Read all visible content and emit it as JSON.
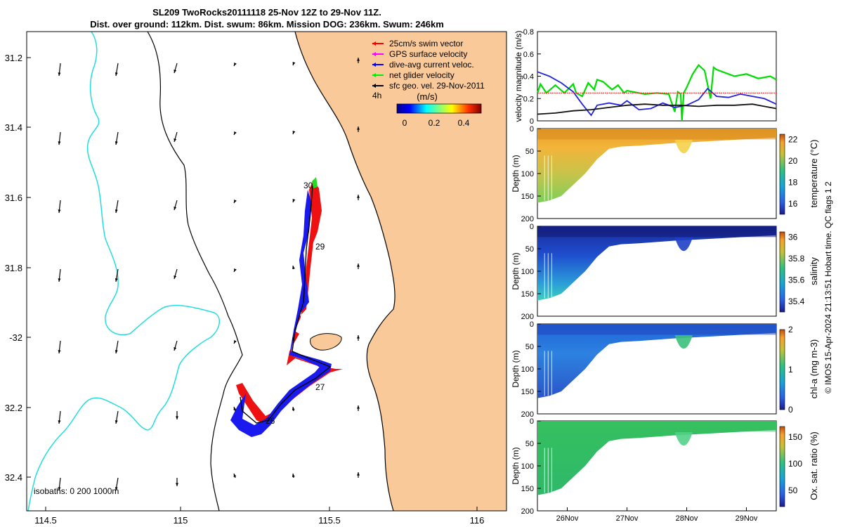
{
  "header": {
    "title_line1": "SL209 TwoRocks20111118 25-Nov 12Z to 29-Nov 11Z.",
    "title_line2": "Dist. over ground: 112km. Dist. swum: 86km. Mission DOG: 236km. Swum: 246km"
  },
  "map": {
    "lon_ticks": [
      "114.5",
      "115",
      "115.5",
      "116"
    ],
    "lat_ticks": [
      "31.2",
      "31.4",
      "31.6",
      "31.8",
      "-32",
      "32.2",
      "32.4"
    ],
    "legend": [
      {
        "label": "25cm/s swim vector",
        "color": "#ff0000"
      },
      {
        "label": "GPS surface velocity",
        "color": "#ff00ff"
      },
      {
        "label": "dive-avg current veloc.",
        "color": "#0000ff"
      },
      {
        "label": "net glider velocity",
        "color": "#00ee00"
      },
      {
        "label": "sfc geo. vel. 29-Nov-2011",
        "color": "#000000"
      }
    ],
    "time_tag": "4h",
    "colorbar": {
      "unit": "(m/s)",
      "ticks": [
        "0",
        "0.2",
        "0.4"
      ]
    },
    "day_labels": [
      "30",
      "29",
      "27",
      "26"
    ],
    "isobaths": "isobaths: 0   200 1000m",
    "colors": {
      "land": "#f9c99a",
      "coast": "#000000",
      "isobath_1000": "#22dddd"
    }
  },
  "chart_data": [
    {
      "type": "line",
      "ylabel": "velocity magnitude (m/s)",
      "ylim": [
        0,
        0.8
      ],
      "x_range_days": [
        25.5,
        29.5
      ],
      "y_ticks": [
        "0",
        "0.2",
        "0.4",
        "0.6",
        "0.8"
      ],
      "series": [
        {
          "name": "net glider velocity",
          "color": "#00dd00",
          "x": [
            25.5,
            25.55,
            25.65,
            25.8,
            25.95,
            26.1,
            26.15,
            26.25,
            26.35,
            26.45,
            26.5,
            26.6,
            26.75,
            26.85,
            26.95,
            27.0,
            27.1,
            27.3,
            27.5,
            27.7,
            27.8,
            27.85,
            27.9,
            27.92,
            27.95,
            28.0,
            28.1,
            28.2,
            28.3,
            28.4,
            28.45,
            28.5,
            28.55,
            28.6,
            28.8,
            29.0,
            29.2,
            29.4,
            29.5
          ],
          "y": [
            0.25,
            0.33,
            0.25,
            0.32,
            0.25,
            0.33,
            0.25,
            0.22,
            0.34,
            0.28,
            0.37,
            0.35,
            0.28,
            0.32,
            0.25,
            0.27,
            0.26,
            0.24,
            0.25,
            0.24,
            0.08,
            0.26,
            0.24,
            0.0,
            0.25,
            0.3,
            0.42,
            0.5,
            0.45,
            0.2,
            0.48,
            0.46,
            0.45,
            0.44,
            0.4,
            0.42,
            0.38,
            0.4,
            0.37
          ]
        },
        {
          "name": "dive-avg current veloc.",
          "color": "#2222dd",
          "x": [
            25.5,
            25.7,
            25.9,
            26.1,
            26.25,
            26.4,
            26.5,
            26.7,
            26.9,
            27.0,
            27.2,
            27.4,
            27.6,
            27.8,
            28.0,
            28.2,
            28.35,
            28.5,
            28.7,
            28.9,
            29.1,
            29.3,
            29.5
          ],
          "y": [
            0.44,
            0.4,
            0.34,
            0.26,
            0.15,
            0.05,
            0.14,
            0.16,
            0.14,
            0.18,
            0.1,
            0.11,
            0.16,
            0.12,
            0.14,
            0.19,
            0.29,
            0.22,
            0.21,
            0.24,
            0.22,
            0.2,
            0.15
          ]
        },
        {
          "name": "sfc geo. vel.",
          "color": "#111111",
          "x": [
            25.5,
            25.8,
            26.1,
            26.4,
            26.7,
            27.0,
            27.3,
            27.6,
            27.9,
            28.2,
            28.5,
            28.8,
            29.1,
            29.3,
            29.5
          ],
          "y": [
            0.06,
            0.07,
            0.09,
            0.1,
            0.12,
            0.14,
            0.15,
            0.14,
            0.14,
            0.13,
            0.14,
            0.14,
            0.15,
            0.13,
            0.11
          ]
        },
        {
          "name": "25cm/s swim vector",
          "color": "#ff2222",
          "x": [
            25.5,
            29.5
          ],
          "y": [
            0.25,
            0.25
          ]
        }
      ]
    },
    {
      "type": "heatmap",
      "variable": "temperature",
      "ylabel": "Depth (m)",
      "ylim": [
        200,
        0
      ],
      "y_ticks": [
        "0",
        "50",
        "100",
        "150",
        "200"
      ],
      "colorbar_label": "temperature (°C)",
      "colorbar_ticks": [
        "16",
        "18",
        "20",
        "22"
      ],
      "clim": [
        15,
        22.5
      ],
      "bottom_depth_profile": {
        "x": [
          25.5,
          25.7,
          25.9,
          26.1,
          26.3,
          26.5,
          26.7,
          26.9,
          27.2,
          27.5,
          27.8,
          28.1,
          28.4,
          28.8,
          29.2,
          29.5
        ],
        "depth": [
          165,
          160,
          150,
          125,
          100,
          68,
          45,
          40,
          38,
          35,
          32,
          30,
          28,
          25,
          22,
          20
        ]
      }
    },
    {
      "type": "heatmap",
      "variable": "salinity",
      "ylabel": "Depth (m)",
      "ylim": [
        200,
        0
      ],
      "y_ticks": [
        "0",
        "50",
        "100",
        "150",
        "200"
      ],
      "colorbar_label": "salinity",
      "colorbar_ticks": [
        "35.4",
        "35.6",
        "35.8",
        "36"
      ],
      "clim": [
        35.3,
        36.05
      ]
    },
    {
      "type": "heatmap",
      "variable": "chl-a",
      "ylabel": "Depth (m)",
      "ylim": [
        200,
        0
      ],
      "y_ticks": [
        "0",
        "50",
        "100",
        "150",
        "200"
      ],
      "colorbar_label": "chl-a (mg m-3)",
      "colorbar_ticks": [
        "0",
        "1",
        "2"
      ],
      "clim": [
        0,
        2
      ]
    },
    {
      "type": "heatmap",
      "variable": "oxygen saturation",
      "ylabel": "Depth (m)",
      "ylim": [
        200,
        0
      ],
      "y_ticks": [
        "0",
        "50",
        "100",
        "150",
        "200"
      ],
      "x_ticks": [
        "26Nov",
        "27Nov",
        "28Nov",
        "29Nov"
      ],
      "colorbar_label": "Ox. sat. ratio (%)",
      "colorbar_ticks": [
        "50",
        "100",
        "150"
      ],
      "clim": [
        20,
        170
      ]
    }
  ],
  "footer_note": "© IMOS 15-Apr-2024 21:13:51 Hobart time. QC flags 1  2"
}
